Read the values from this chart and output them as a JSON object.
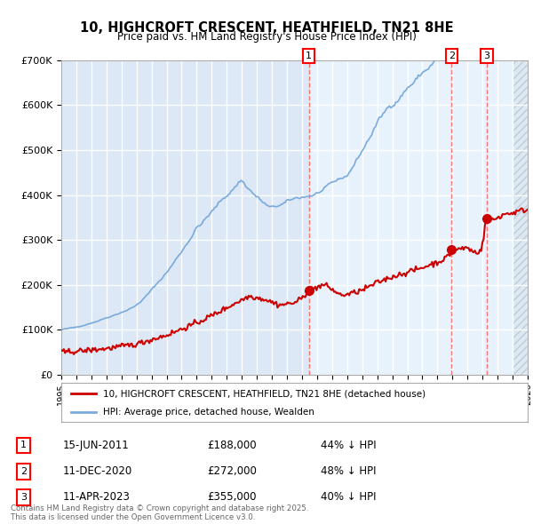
{
  "title": "10, HIGHCROFT CRESCENT, HEATHFIELD, TN21 8HE",
  "subtitle": "Price paid vs. HM Land Registry's House Price Index (HPI)",
  "ylim": [
    0,
    700000
  ],
  "yticks": [
    0,
    100000,
    200000,
    300000,
    400000,
    500000,
    600000,
    700000
  ],
  "ytick_labels": [
    "£0",
    "£100K",
    "£200K",
    "£300K",
    "£400K",
    "£500K",
    "£600K",
    "£700K"
  ],
  "background_color": "#ffffff",
  "plot_bg_color": "#dce8f5",
  "plot_bg_color2": "#e8f2fc",
  "grid_color": "#ffffff",
  "hpi_color": "#7aaadd",
  "price_color": "#cc0000",
  "dashed_line_color": "#ff6666",
  "hatch_region_color": "#dde8f0",
  "legend_items": [
    {
      "label": "10, HIGHCROFT CRESCENT, HEATHFIELD, TN21 8HE (detached house)",
      "color": "#cc0000"
    },
    {
      "label": "HPI: Average price, detached house, Wealden",
      "color": "#7aaadd"
    }
  ],
  "sales": [
    {
      "num": 1,
      "date": "15-JUN-2011",
      "price": 188000,
      "pct": "44%",
      "direction": "↓",
      "x": 2011.45
    },
    {
      "num": 2,
      "date": "11-DEC-2020",
      "price": 272000,
      "pct": "48%",
      "direction": "↓",
      "x": 2020.95
    },
    {
      "num": 3,
      "date": "11-APR-2023",
      "price": 355000,
      "pct": "40%",
      "direction": "↓",
      "x": 2023.28
    }
  ],
  "footer": "Contains HM Land Registry data © Crown copyright and database right 2025.\nThis data is licensed under the Open Government Licence v3.0.",
  "xmin": 1995,
  "xmax": 2026,
  "hatch_start": 2025.0
}
